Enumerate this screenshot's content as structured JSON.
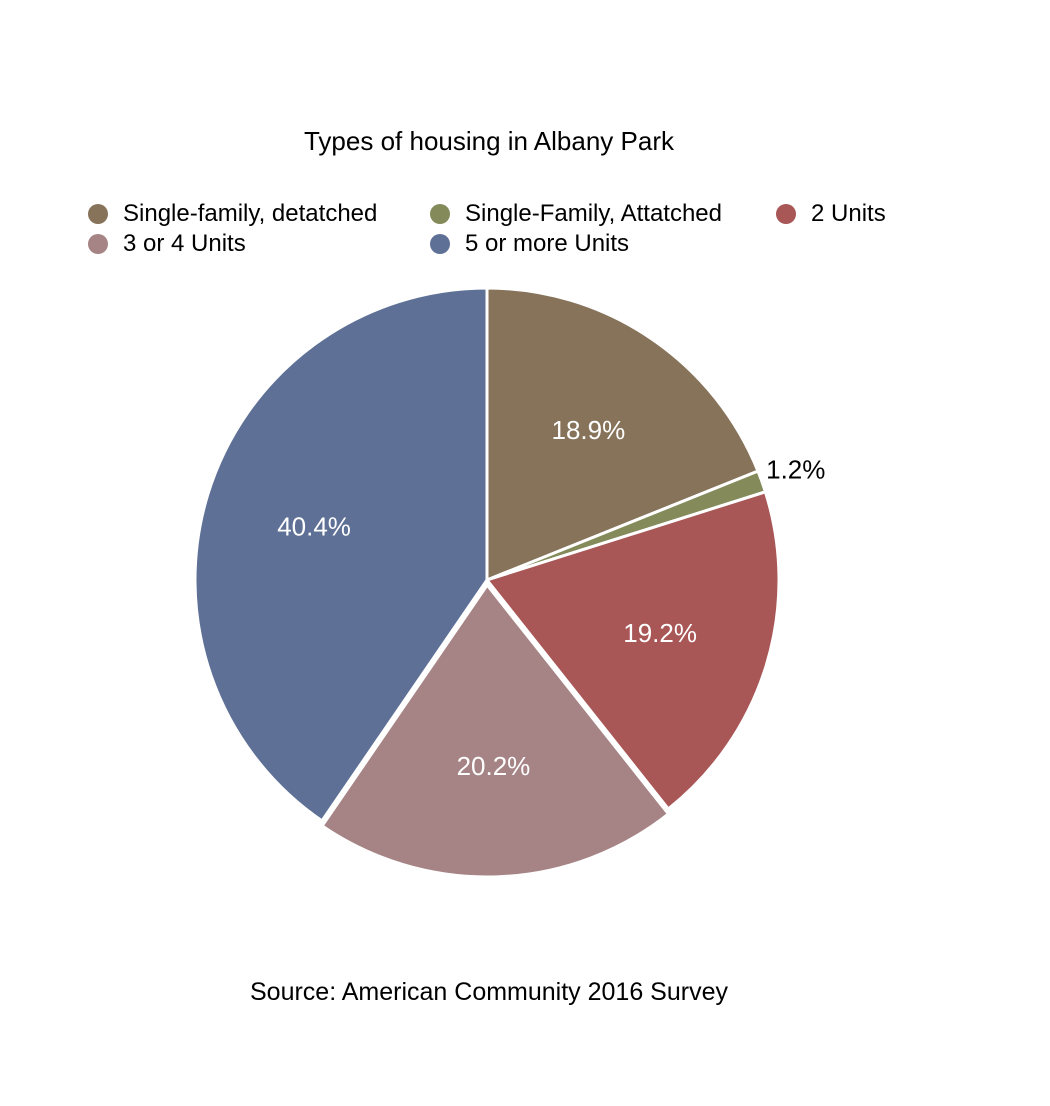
{
  "chart_data": {
    "type": "pie",
    "title": "Types of housing in Albany Park",
    "categories": [
      "Single-family, detatched",
      "Single-Family, Attatched",
      "2 Units",
      "3 or 4 Units",
      "5 or more Units"
    ],
    "values": [
      18.9,
      1.2,
      19.2,
      20.2,
      40.4
    ],
    "labels": [
      "18.9%",
      "1.2%",
      "19.2%",
      "20.2%",
      "40.4%"
    ],
    "colors": [
      "#86735a",
      "#848a5a",
      "#a85656",
      "#a68485",
      "#5e7096"
    ],
    "label_colors": [
      "#ffffff",
      "#000000",
      "#ffffff",
      "#ffffff",
      "#ffffff"
    ],
    "legend_position": "top",
    "source": "Source: American Community 2016 Survey"
  }
}
